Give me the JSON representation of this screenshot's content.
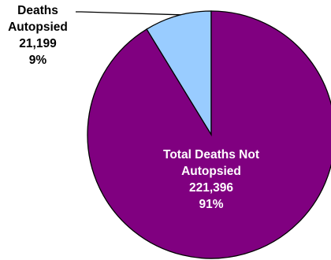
{
  "chart_data": {
    "type": "pie",
    "title": "",
    "slices": [
      {
        "label": "Deaths Autopsied",
        "label_lines": [
          "Deaths",
          "Autopsied"
        ],
        "value": 21199,
        "value_text": "21,199",
        "percent": 9,
        "percent_text": "9%",
        "color": "#99ccff"
      },
      {
        "label": "Total Deaths Not Autopsied",
        "label_lines": [
          "Total Deaths Not",
          "Autopsied"
        ],
        "value": 221396,
        "value_text": "221,396",
        "percent": 91,
        "percent_text": "91%",
        "color": "#800080"
      }
    ],
    "start": "12 o'clock",
    "legend": "none",
    "outline_color": "#000000"
  }
}
